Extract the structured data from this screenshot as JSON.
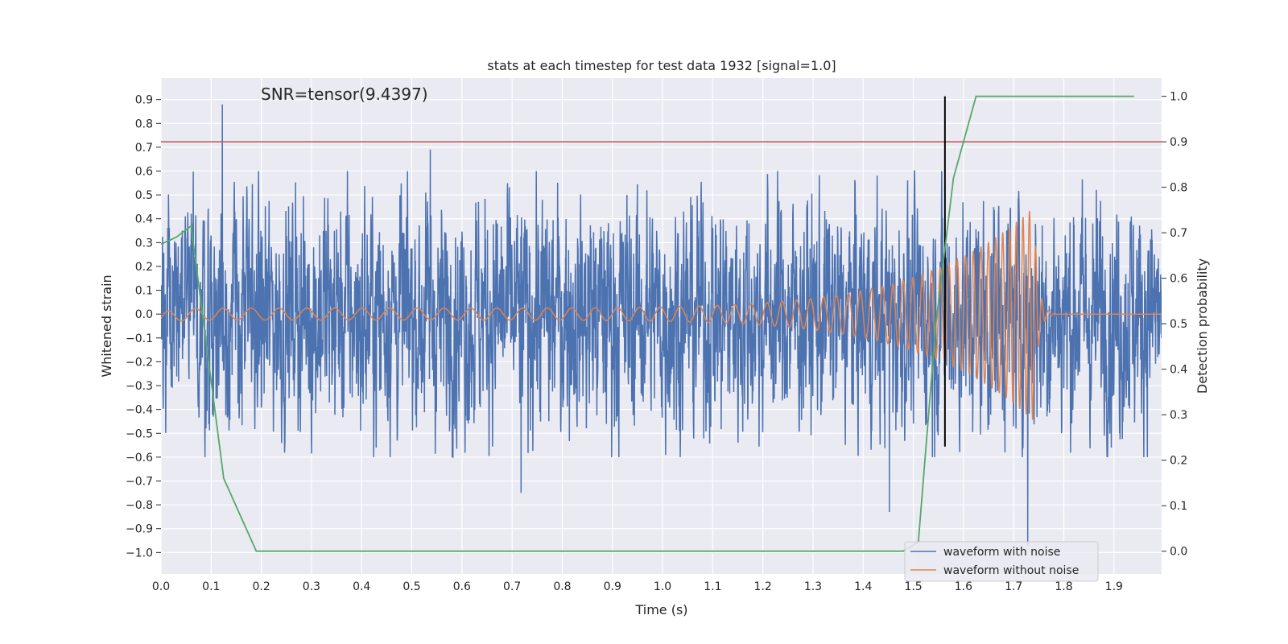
{
  "chart_data": {
    "type": "line",
    "title": "stats at each timestep for test data 1932 [signal=1.0]",
    "xlabel": "Time (s)",
    "ylabel": "Whitened strain",
    "y2label": "Detection probability",
    "annotation": "SNR=tensor(9.4397)",
    "xlim": [
      0.0,
      1.995
    ],
    "ylim": [
      -1.09,
      0.99
    ],
    "y2lim": [
      -0.05,
      1.04
    ],
    "xticks": [
      "0.0",
      "0.1",
      "0.2",
      "0.3",
      "0.4",
      "0.5",
      "0.6",
      "0.7",
      "0.8",
      "0.9",
      "1.0",
      "1.1",
      "1.2",
      "1.3",
      "1.4",
      "1.5",
      "1.6",
      "1.7",
      "1.8",
      "1.9"
    ],
    "yticks": [
      "0.9",
      "0.8",
      "0.7",
      "0.6",
      "0.5",
      "0.4",
      "0.3",
      "0.2",
      "0.1",
      "0.0",
      "−0.1",
      "−0.2",
      "−0.3",
      "−0.4",
      "−0.5",
      "−0.6",
      "−0.7",
      "−0.8",
      "−0.9",
      "−1.0"
    ],
    "y2ticks": [
      "1.0",
      "0.9",
      "0.8",
      "0.7",
      "0.6",
      "0.5",
      "0.4",
      "0.3",
      "0.2",
      "0.1",
      "0.0"
    ],
    "threshold": {
      "y2": 0.9,
      "color": "#c44e52"
    },
    "vline": {
      "x": 1.563,
      "color": "#000000"
    },
    "legend": {
      "placement": "lower-right",
      "entries": [
        {
          "name": "waveform with noise",
          "color": "#4c72b0"
        },
        {
          "name": "waveform without noise",
          "color": "#dd8452"
        }
      ]
    },
    "series": [
      {
        "name": "waveform with noise",
        "axis": "left",
        "color": "#4c72b0",
        "description_values": "noisy whitened strain, range about -0.97 to 0.89",
        "peaks": [
          {
            "x": 0.122,
            "y": 0.88
          },
          {
            "x": 0.537,
            "y": 0.69
          },
          {
            "x": 0.718,
            "y": -0.75
          },
          {
            "x": 1.452,
            "y": -0.83
          },
          {
            "x": 1.728,
            "y": -0.97
          }
        ],
        "envelope": 0.48
      },
      {
        "name": "waveform without noise",
        "axis": "left",
        "color": "#dd8452",
        "chirp": {
          "f0": 18,
          "f1": 80,
          "t_merger": 1.74,
          "amp_start": 0.025,
          "amp_end": 0.45,
          "start_offset": -0.02
        }
      },
      {
        "name": "detection probability",
        "axis": "right",
        "color": "#55a868",
        "x": [
          0.0,
          0.03,
          0.06,
          0.125,
          0.19,
          0.25,
          1.0,
          1.48,
          1.51,
          1.545,
          1.58,
          1.625,
          1.94
        ],
        "values": [
          0.675,
          0.69,
          0.715,
          0.16,
          0.0,
          0.0,
          0.0,
          0.0,
          0.02,
          0.5,
          0.82,
          1.0,
          1.0
        ]
      }
    ]
  }
}
